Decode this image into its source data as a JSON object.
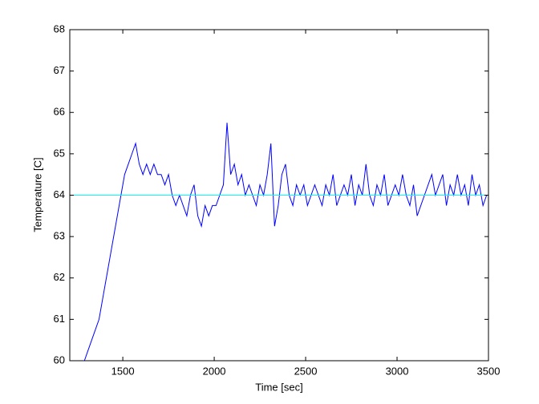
{
  "chart_data": {
    "type": "line",
    "xlabel": "Time [sec]",
    "ylabel": "Temperature [C]",
    "xlim": [
      1210,
      3500
    ],
    "xticks": [
      1500,
      2000,
      2500,
      3000,
      3500
    ],
    "ylim": [
      60,
      68
    ],
    "yticks": [
      60,
      61,
      62,
      63,
      64,
      65,
      66,
      67,
      68
    ],
    "series": [
      {
        "color": "#0000ff",
        "x": [
          1290,
          1310,
          1330,
          1350,
          1370,
          1390,
          1410,
          1430,
          1450,
          1470,
          1490,
          1510,
          1530,
          1550,
          1570,
          1590,
          1610,
          1630,
          1650,
          1670,
          1690,
          1710,
          1730,
          1750,
          1770,
          1790,
          1810,
          1830,
          1850,
          1870,
          1890,
          1910,
          1930,
          1950,
          1970,
          1990,
          2010,
          2030,
          2050,
          2070,
          2090,
          2110,
          2130,
          2150,
          2170,
          2190,
          2210,
          2230,
          2250,
          2270,
          2290,
          2310,
          2330,
          2350,
          2370,
          2390,
          2410,
          2430,
          2450,
          2470,
          2490,
          2510,
          2530,
          2550,
          2570,
          2590,
          2610,
          2630,
          2650,
          2670,
          2690,
          2710,
          2730,
          2750,
          2770,
          2790,
          2810,
          2830,
          2850,
          2870,
          2890,
          2910,
          2930,
          2950,
          2970,
          2990,
          3010,
          3030,
          3050,
          3070,
          3090,
          3110,
          3130,
          3150,
          3170,
          3190,
          3210,
          3230,
          3250,
          3270,
          3290,
          3310,
          3330,
          3350,
          3370,
          3390,
          3410,
          3430,
          3450,
          3470,
          3490
        ],
        "values": [
          60,
          60.25,
          60.5,
          60.75,
          61,
          61.5,
          62,
          62.5,
          63,
          63.5,
          64,
          64.5,
          64.75,
          65,
          65.25,
          64.75,
          64.5,
          64.75,
          64.5,
          64.75,
          64.5,
          64.5,
          64.25,
          64.5,
          64,
          63.75,
          64,
          63.75,
          63.5,
          64,
          64.25,
          63.5,
          63.25,
          63.75,
          63.5,
          63.75,
          63.75,
          64,
          64.25,
          65.75,
          64.5,
          64.75,
          64.25,
          64.5,
          64,
          64.25,
          64,
          63.75,
          64.25,
          64,
          64.5,
          65.25,
          63.25,
          63.75,
          64.5,
          64.75,
          64,
          63.75,
          64.25,
          64,
          64.25,
          63.75,
          64,
          64.25,
          64,
          63.75,
          64.25,
          64,
          64.5,
          63.75,
          64,
          64.25,
          64,
          64.5,
          63.75,
          64.25,
          64,
          64.75,
          64,
          63.75,
          64.25,
          64,
          64.5,
          63.75,
          64,
          64.25,
          64,
          64.5,
          64,
          63.75,
          64.25,
          63.5,
          63.75,
          64,
          64.25,
          64.5,
          64,
          64.25,
          64.5,
          63.75,
          64.25,
          64,
          64.5,
          64,
          64.25,
          63.75,
          64.5,
          64,
          64.25,
          63.75,
          64
        ]
      },
      {
        "color": "#00ffff",
        "x": [
          1210,
          3500
        ],
        "values": [
          64,
          64
        ]
      }
    ]
  }
}
